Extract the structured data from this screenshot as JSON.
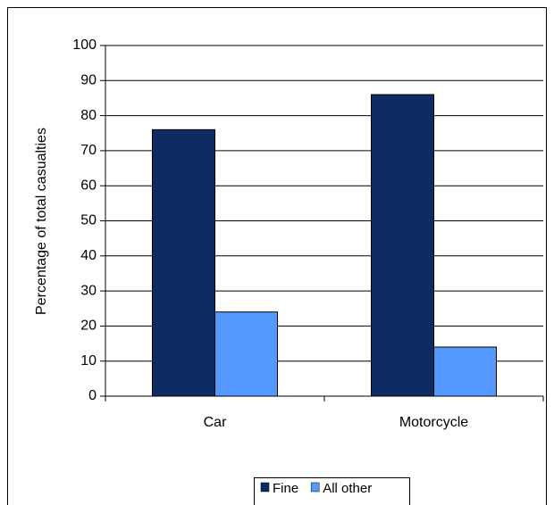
{
  "chart_data": {
    "type": "bar",
    "y_label": "Percentage of total casualties",
    "categories": [
      "Car",
      "Motorcycle"
    ],
    "series": [
      {
        "name": "Fine",
        "color": "#0f2b63",
        "values": [
          76,
          86
        ]
      },
      {
        "name": "All other",
        "color": "#5599ff",
        "values": [
          24,
          14
        ]
      }
    ],
    "ylim": [
      0,
      100
    ],
    "yticks": [
      0,
      10,
      20,
      30,
      40,
      50,
      60,
      70,
      80,
      90,
      100
    ],
    "grid": true,
    "legend": "bottom"
  }
}
